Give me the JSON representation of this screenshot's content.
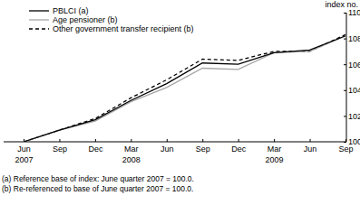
{
  "chart_data": {
    "type": "line",
    "ylabel": "index no.",
    "categories": [
      "Jun\n2007",
      "Sep",
      "Dec",
      "Mar\n2008",
      "Jun",
      "Sep",
      "Dec",
      "Mar\n2009",
      "Jun",
      "Sep"
    ],
    "series": [
      {
        "name": "PBLCI (a)",
        "color": "#000000",
        "line_style": "solid",
        "values": [
          100.0,
          100.9,
          101.7,
          103.2,
          104.5,
          106.1,
          106.0,
          106.9,
          107.1,
          108.2
        ]
      },
      {
        "name": "Age pensioner (b)",
        "color": "#a6a6a6",
        "line_style": "solid",
        "values": [
          100.0,
          100.9,
          101.6,
          103.1,
          104.2,
          105.7,
          105.6,
          106.9,
          107.0,
          108.2
        ]
      },
      {
        "name": "Other government transfer recipient (b)",
        "color": "#000000",
        "line_style": "dashed",
        "values": [
          100.0,
          100.9,
          101.8,
          103.4,
          104.8,
          106.4,
          106.3,
          107.0,
          107.0,
          108.3
        ]
      }
    ],
    "ylim": [
      100,
      110
    ],
    "yticks": [
      100,
      102,
      104,
      106,
      108,
      110
    ],
    "grid": false,
    "legend": "top-left",
    "notes": [
      "(a) Reference base of index: June quarter 2007 = 100.0.",
      "(b) Re-referenced to base of June quarter 2007 = 100.0."
    ]
  }
}
